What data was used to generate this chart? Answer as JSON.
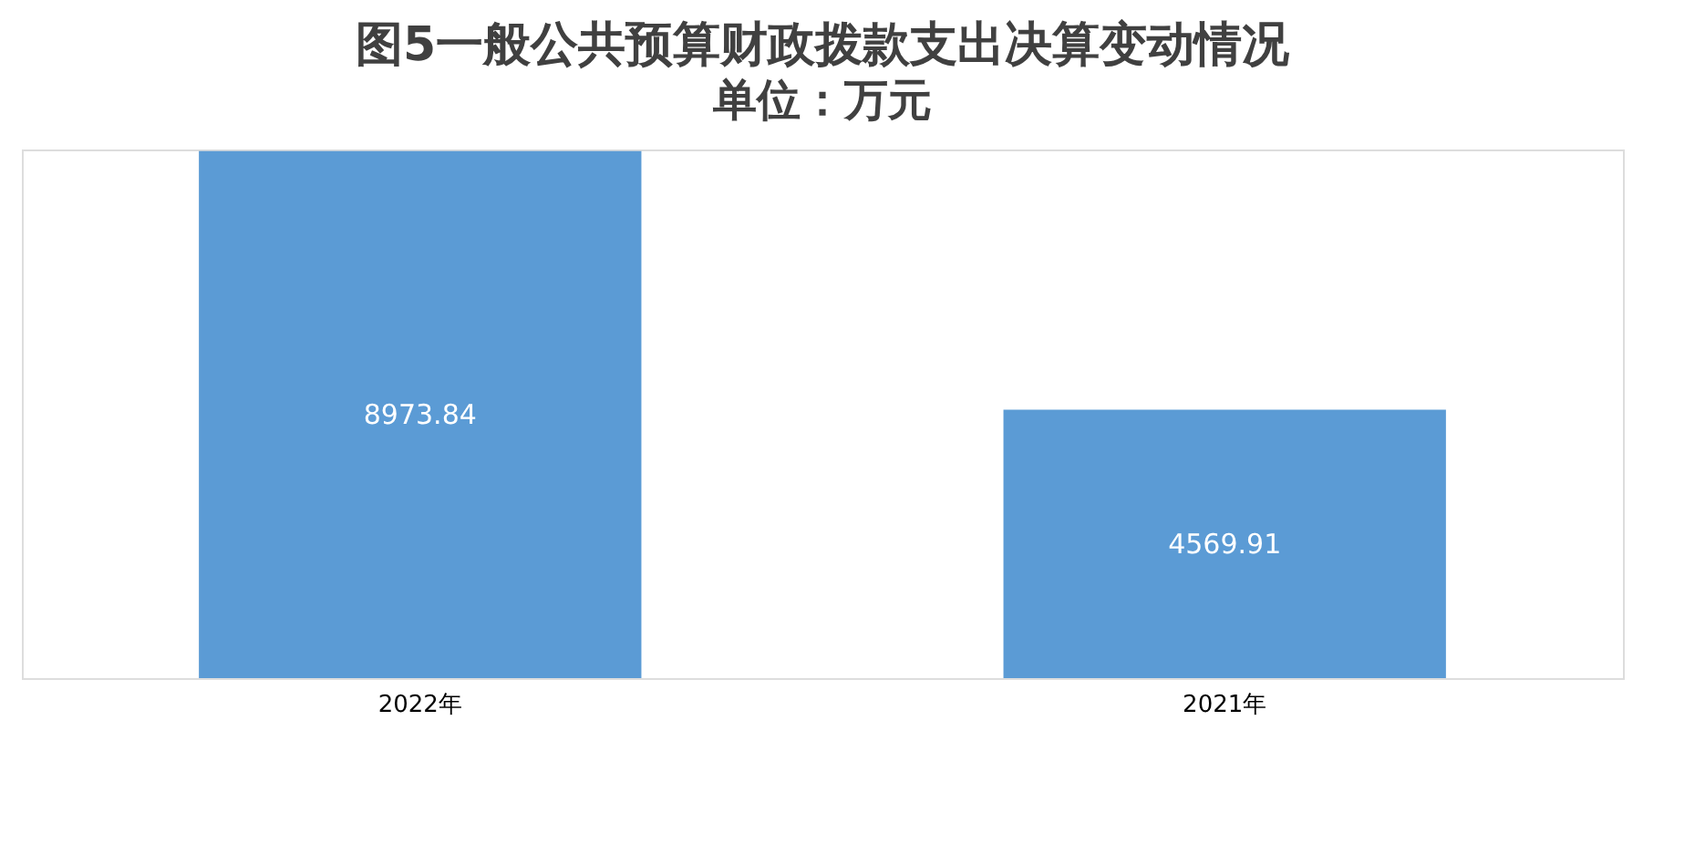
{
  "chart_data": {
    "type": "bar",
    "title": "图5一般公共预算财政拨款支出决算变动情况",
    "subtitle": "单位：万元",
    "categories": [
      "2022年",
      "2021年"
    ],
    "values": [
      8973.84,
      4569.91
    ],
    "color": "#5b9bd5",
    "data_labels": true,
    "tick_labels": "x"
  }
}
